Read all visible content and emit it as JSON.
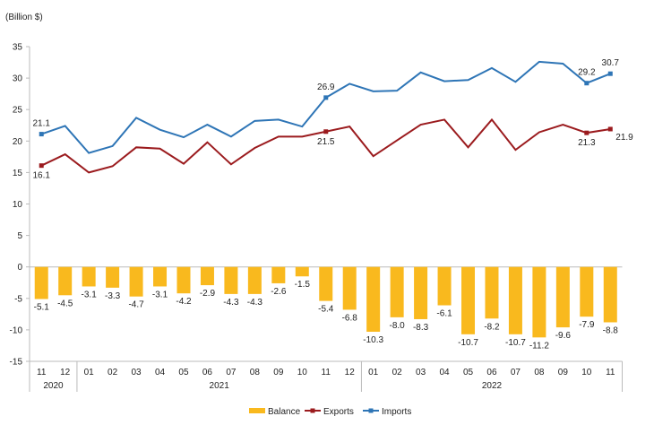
{
  "chart_data": {
    "type": "bar+line",
    "ylabel": "(Billion $)",
    "ylim": [
      -15,
      35
    ],
    "yticks": [
      -15,
      -10,
      -5,
      0,
      5,
      10,
      15,
      20,
      25,
      30,
      35
    ],
    "categories": [
      "11",
      "12",
      "01",
      "02",
      "03",
      "04",
      "05",
      "06",
      "07",
      "08",
      "09",
      "10",
      "11",
      "12",
      "01",
      "02",
      "03",
      "04",
      "05",
      "06",
      "07",
      "08",
      "09",
      "10",
      "11"
    ],
    "years": [
      {
        "label": "2020",
        "count": 2
      },
      {
        "label": "2021",
        "count": 12
      },
      {
        "label": "2022",
        "count": 11
      }
    ],
    "series": [
      {
        "name": "Balance",
        "type": "bar",
        "color": "#F9B91E",
        "values": [
          -5.1,
          -4.5,
          -3.1,
          -3.3,
          -4.7,
          -3.1,
          -4.2,
          -2.9,
          -4.3,
          -4.3,
          -2.6,
          -1.5,
          -5.4,
          -6.8,
          -10.3,
          -8.0,
          -8.3,
          -6.1,
          -10.7,
          -8.2,
          -10.7,
          -11.2,
          -9.6,
          -7.9,
          -8.8
        ],
        "labels": [
          "-5.1",
          "-4.5",
          "-3.1",
          "-3.3",
          "-4.7",
          "-3.1",
          "-4.2",
          "-2.9",
          "-4.3",
          "-4.3",
          "-2.6",
          "-1.5",
          "-5.4",
          "-6.8",
          "-10.3",
          "-8.0",
          "-8.3",
          "-6.1",
          "-10.7",
          "-8.2",
          "-10.7",
          "-11.2",
          "-9.6",
          "-7.9",
          "-8.8"
        ]
      },
      {
        "name": "Exports",
        "type": "line",
        "color": "#9B1B1E",
        "values": [
          16.1,
          17.9,
          15.0,
          16.0,
          19.0,
          18.8,
          16.4,
          19.8,
          16.3,
          18.9,
          20.7,
          20.7,
          21.5,
          22.3,
          17.6,
          20.1,
          22.6,
          23.4,
          19.0,
          23.4,
          18.6,
          21.4,
          22.6,
          21.3,
          21.9
        ],
        "labeled": {
          "0": "16.1",
          "12": "21.5",
          "23": "21.3",
          "24": "21.9"
        }
      },
      {
        "name": "Imports",
        "type": "line",
        "color": "#2E75B6",
        "values": [
          21.1,
          22.4,
          18.1,
          19.2,
          23.7,
          21.8,
          20.6,
          22.6,
          20.7,
          23.2,
          23.4,
          22.3,
          26.9,
          29.1,
          27.9,
          28.0,
          30.9,
          29.5,
          29.7,
          31.6,
          29.4,
          32.6,
          32.3,
          29.2,
          30.7
        ],
        "labeled": {
          "0": "21.1",
          "12": "26.9",
          "23": "29.2",
          "24": "30.7"
        }
      }
    ],
    "legend": "bottom"
  }
}
